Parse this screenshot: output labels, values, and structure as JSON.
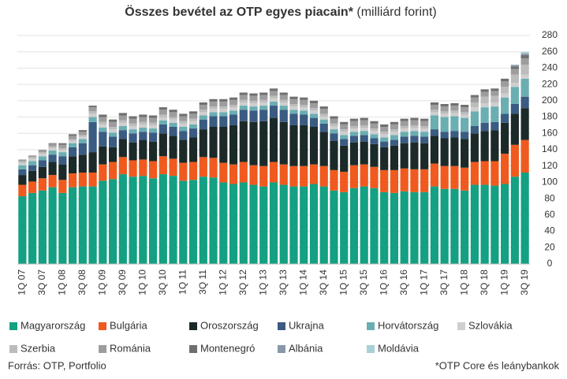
{
  "chart_data": {
    "type": "stacked_bar",
    "title": "Összes bevétel az OTP egyes piacain*",
    "subtitle": "(milliárd forint)",
    "source": "Forrás: OTP, Portfolio",
    "note": "*OTP Core és leánybankok",
    "categories": [
      "1Q 07",
      null,
      "3Q 07",
      null,
      "1Q 08",
      null,
      "3Q 08",
      null,
      "1Q 09",
      null,
      "3Q 09",
      null,
      "1Q 10",
      null,
      "3Q 10",
      null,
      "1Q 11",
      null,
      "3Q 11",
      null,
      "1Q 12",
      null,
      "3Q 12",
      null,
      "1Q 13",
      null,
      "3Q 13",
      null,
      "1Q 14",
      null,
      "3Q 14",
      null,
      "1Q 15",
      null,
      "3Q 15",
      null,
      "1Q 16",
      null,
      "3Q 16",
      null,
      "1Q 17",
      null,
      "3Q 17",
      null,
      "1Q 18",
      null,
      "3Q 18",
      null,
      "1Q 19",
      null,
      "3Q 19"
    ],
    "ylim": [
      0,
      280
    ],
    "yticks": [
      0,
      20,
      40,
      60,
      80,
      100,
      120,
      140,
      160,
      180,
      200,
      220,
      240,
      260,
      280
    ],
    "grid": true,
    "series": [
      {
        "name": "Magyarország",
        "color": "#14a082",
        "values": [
          83,
          87,
          90,
          94,
          87,
          94,
          95,
          95,
          102,
          104,
          110,
          107,
          108,
          105,
          110,
          108,
          102,
          103,
          107,
          106,
          100,
          98,
          100,
          97,
          95,
          100,
          97,
          95,
          95,
          98,
          95,
          90,
          88,
          93,
          95,
          93,
          88,
          87,
          89,
          88,
          88,
          95,
          92,
          92,
          90,
          97,
          97,
          96,
          98,
          107,
          112
        ]
      },
      {
        "name": "Bulgária",
        "color": "#f05a1e",
        "values": [
          14,
          14,
          15,
          15,
          16,
          17,
          17,
          17,
          20,
          21,
          21,
          20,
          20,
          21,
          22,
          21,
          22,
          22,
          24,
          24,
          24,
          24,
          25,
          24,
          25,
          25,
          25,
          25,
          25,
          24,
          25,
          25,
          25,
          28,
          27,
          26,
          27,
          28,
          28,
          28,
          28,
          28,
          28,
          28,
          28,
          28,
          29,
          30,
          37,
          39,
          40
        ]
      },
      {
        "name": "Oroszország",
        "color": "#1b2a28",
        "values": [
          12,
          13,
          14,
          16,
          19,
          21,
          22,
          25,
          22,
          18,
          22,
          22,
          24,
          24,
          28,
          28,
          28,
          30,
          34,
          38,
          44,
          48,
          50,
          53,
          55,
          54,
          52,
          50,
          50,
          46,
          42,
          36,
          32,
          28,
          28,
          28,
          28,
          30,
          31,
          33,
          32,
          34,
          34,
          35,
          35,
          35,
          37,
          38,
          38,
          38,
          39
        ]
      },
      {
        "name": "Ukrajna",
        "color": "#3a5b82",
        "values": [
          7,
          7,
          8,
          9,
          10,
          11,
          14,
          37,
          18,
          13,
          11,
          11,
          10,
          11,
          11,
          11,
          11,
          11,
          12,
          13,
          13,
          13,
          14,
          14,
          14,
          15,
          15,
          14,
          13,
          11,
          10,
          9,
          8,
          8,
          8,
          7,
          7,
          7,
          8,
          8,
          8,
          8,
          8,
          8,
          9,
          9,
          10,
          10,
          11,
          12,
          14
        ]
      },
      {
        "name": "Horvátország",
        "color": "#6aaeb2",
        "values": [
          5,
          5,
          5,
          5,
          5,
          5,
          5,
          6,
          5,
          5,
          5,
          5,
          5,
          5,
          5,
          5,
          5,
          5,
          5,
          5,
          5,
          5,
          5,
          5,
          5,
          5,
          5,
          5,
          5,
          5,
          5,
          5,
          5,
          5,
          5,
          5,
          5,
          6,
          6,
          6,
          6,
          17,
          18,
          18,
          17,
          18,
          19,
          19,
          20,
          21,
          22
        ]
      },
      {
        "name": "Szlovákia",
        "color": "#cfcfcf",
        "values": [
          3,
          3,
          3,
          3,
          3,
          3,
          3,
          4,
          4,
          4,
          4,
          4,
          4,
          4,
          4,
          4,
          4,
          4,
          4,
          4,
          4,
          4,
          4,
          4,
          4,
          4,
          4,
          4,
          4,
          4,
          4,
          4,
          4,
          4,
          4,
          4,
          4,
          4,
          4,
          4,
          4,
          4,
          4,
          4,
          4,
          5,
          5,
          5,
          5,
          5,
          5
        ]
      },
      {
        "name": "Szerbia",
        "color": "#bcbcbc",
        "values": [
          2,
          2,
          2,
          2,
          2,
          2,
          2,
          3,
          3,
          3,
          3,
          3,
          3,
          3,
          3,
          3,
          3,
          3,
          3,
          3,
          3,
          3,
          3,
          3,
          3,
          3,
          3,
          3,
          3,
          3,
          3,
          3,
          3,
          3,
          3,
          3,
          3,
          3,
          3,
          3,
          3,
          3,
          3,
          3,
          3,
          6,
          8,
          8,
          8,
          10,
          12
        ]
      },
      {
        "name": "Románia",
        "color": "#9d9d9d",
        "values": [
          2,
          2,
          3,
          3,
          4,
          4,
          4,
          5,
          6,
          6,
          6,
          6,
          6,
          6,
          6,
          6,
          6,
          6,
          6,
          6,
          6,
          6,
          6,
          6,
          6,
          6,
          6,
          6,
          6,
          6,
          6,
          6,
          6,
          6,
          6,
          6,
          6,
          6,
          6,
          6,
          6,
          6,
          6,
          6,
          6,
          6,
          6,
          6,
          7,
          7,
          8
        ]
      },
      {
        "name": "Montenegró",
        "color": "#6f6f6f",
        "values": [
          0,
          0,
          0,
          1,
          2,
          2,
          2,
          2,
          3,
          3,
          3,
          3,
          3,
          3,
          3,
          3,
          3,
          3,
          3,
          3,
          3,
          3,
          3,
          3,
          3,
          3,
          3,
          3,
          3,
          3,
          3,
          3,
          3,
          3,
          3,
          3,
          3,
          3,
          3,
          3,
          3,
          3,
          3,
          3,
          3,
          3,
          3,
          3,
          3,
          3,
          4
        ]
      },
      {
        "name": "Albánia",
        "color": "#8a97aa",
        "values": [
          0,
          0,
          0,
          0,
          0,
          0,
          0,
          0,
          0,
          0,
          0,
          0,
          0,
          0,
          0,
          0,
          0,
          0,
          0,
          0,
          0,
          0,
          0,
          0,
          0,
          0,
          0,
          0,
          0,
          0,
          0,
          0,
          0,
          0,
          0,
          0,
          0,
          0,
          0,
          0,
          0,
          0,
          0,
          0,
          0,
          0,
          0,
          0,
          0,
          2,
          2
        ]
      },
      {
        "name": "Moldávia",
        "color": "#a9d0d6",
        "values": [
          0,
          0,
          0,
          0,
          0,
          0,
          0,
          0,
          0,
          0,
          0,
          0,
          0,
          0,
          0,
          0,
          0,
          0,
          0,
          0,
          0,
          0,
          0,
          0,
          0,
          0,
          0,
          0,
          0,
          0,
          0,
          0,
          0,
          0,
          0,
          0,
          0,
          0,
          0,
          0,
          0,
          0,
          0,
          0,
          0,
          0,
          0,
          0,
          0,
          0,
          2
        ]
      }
    ]
  }
}
